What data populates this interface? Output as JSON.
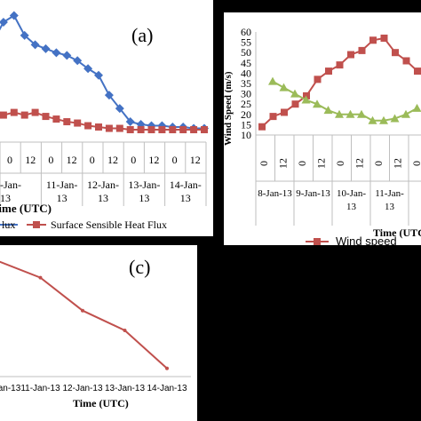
{
  "chart_data": [
    {
      "panel_label": "(a)",
      "type": "line",
      "xlabel": "Time (UTC)",
      "tick_labels": [
        "0",
        "12",
        "0",
        "12",
        "0",
        "12",
        "0",
        "12",
        "0",
        "12"
      ],
      "date_labels": [
        "-Jan-\n13",
        "11-Jan-\n13",
        "12-Jan-\n13",
        "13-Jan-\n13",
        "14-Jan-\n13"
      ],
      "legend": [
        "lux",
        "Surface Sensible Heat Flux"
      ],
      "series": [
        {
          "name": "lux",
          "color": "#4472C4",
          "marker": "diamond",
          "values": [
            100,
            115,
            120,
            105,
            98,
            95,
            92,
            90,
            86,
            80,
            75,
            60,
            50,
            40,
            38,
            37,
            37,
            36,
            36,
            35,
            35
          ]
        },
        {
          "name": "Surface Sensible Heat Flux",
          "color": "#C0504D",
          "marker": "square",
          "values": [
            48,
            45,
            47,
            45,
            47,
            44,
            42,
            40,
            39,
            37,
            36,
            35,
            35,
            34,
            34,
            34,
            34,
            34,
            34,
            34,
            34
          ]
        }
      ]
    },
    {
      "type": "line",
      "ylabel": "Wind Speed (m/s)",
      "xlabel": "Time (UTC",
      "yticks": [
        10,
        15,
        20,
        25,
        30,
        35,
        40,
        45,
        50,
        55,
        60
      ],
      "ylim": [
        10,
        60
      ],
      "tick_labels": [
        "0",
        "12",
        "0",
        "12",
        "0",
        "12",
        "0",
        "12",
        "0"
      ],
      "date_labels": [
        "8-Jan-13",
        "9-Jan-13",
        "10-Jan-\n13",
        "11-Jan-\n13"
      ],
      "legend": [
        "Wind speed"
      ],
      "series": [
        {
          "name": "Wind speed",
          "color": "#C0504D",
          "marker": "square",
          "values": [
            14,
            19,
            21,
            25,
            29,
            37,
            41,
            44,
            49,
            51,
            56,
            57,
            50,
            46,
            41,
            37
          ]
        },
        {
          "name": "",
          "color": "#9BBB59",
          "marker": "triangle",
          "values": [
            36,
            33,
            30,
            27,
            25,
            22,
            20,
            20,
            20,
            17,
            17,
            18,
            20,
            23
          ]
        }
      ]
    },
    {
      "panel_label": "(c)",
      "type": "line",
      "xlabel": "Time (UTC)",
      "categories": [
        "Jan-13",
        "11-Jan-13",
        "12-Jan-13",
        "13-Jan-13",
        "14-Jan-13"
      ],
      "series": [
        {
          "name": "",
          "color": "#C0504D",
          "values": [
            100,
            90,
            70,
            58,
            35
          ]
        }
      ]
    }
  ]
}
